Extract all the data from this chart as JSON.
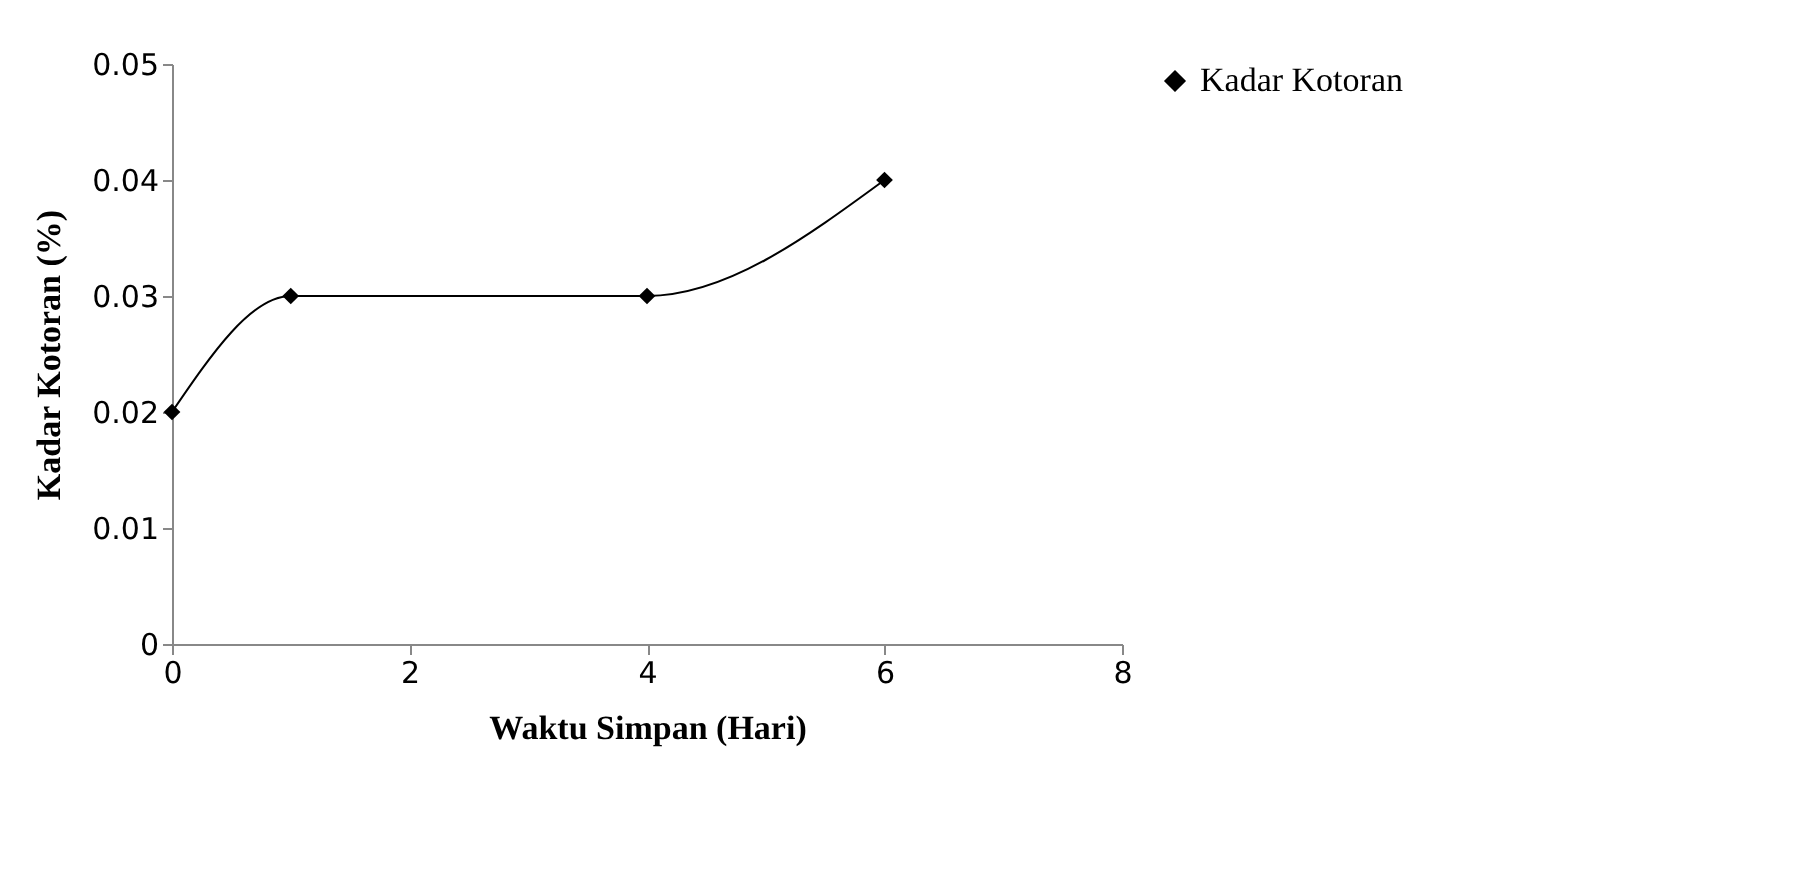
{
  "chart_data": {
    "type": "line",
    "xlabel": "Waktu Simpan (Hari)",
    "ylabel": "Kadar Kotoran (%)",
    "x": [
      0,
      1,
      4,
      6
    ],
    "series": [
      {
        "name": "Kadar Kotoran",
        "color": "#000000",
        "values": [
          0.02,
          0.03,
          0.03,
          0.04
        ]
      }
    ],
    "xlim": [
      0,
      8
    ],
    "xticks": [
      0,
      2,
      4,
      6,
      8
    ],
    "ylim": [
      0,
      0.05
    ],
    "yticks": [
      0,
      0.01,
      0.02,
      0.03,
      0.04,
      0.05
    ],
    "grid": false,
    "legend": "right",
    "marker": "diamond",
    "line_style": "solid"
  }
}
